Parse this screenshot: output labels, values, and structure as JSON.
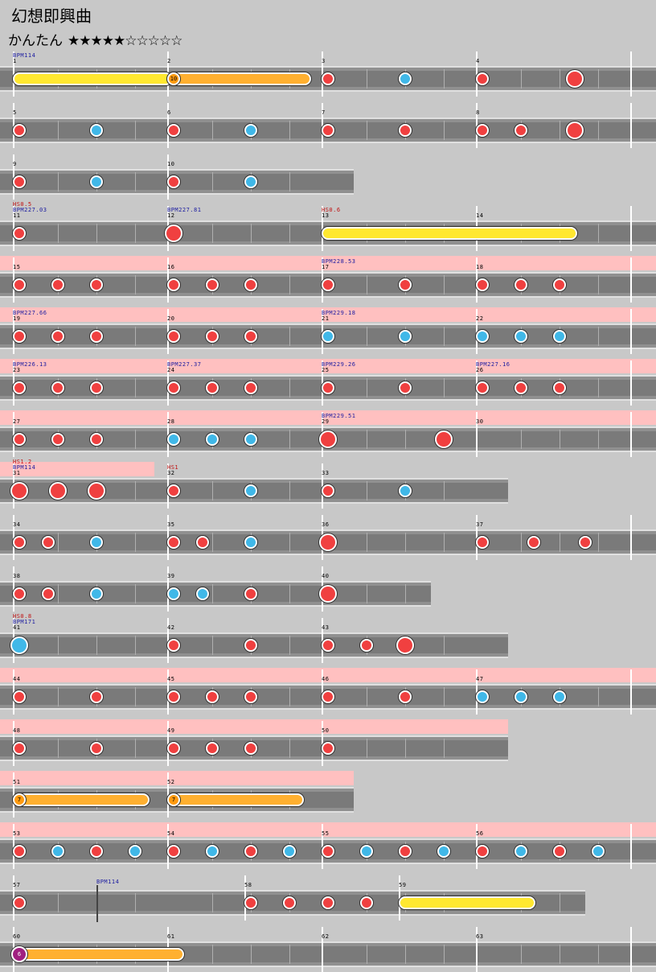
{
  "song_title": "幻想即興曲",
  "difficulty": {
    "label": "かんたん",
    "stars": "★★★★★☆☆☆☆☆"
  },
  "colors": {
    "don": "#f04040",
    "ka": "#40b8e8",
    "drumroll": "#ffe830",
    "balloon": "#ffb030",
    "gogo": "#ffc0c0"
  },
  "rows": [
    {
      "row": 1,
      "measures": [
        {
          "num": "1",
          "bpm": "BPM114"
        },
        {
          "num": "2"
        },
        {
          "num": "3"
        },
        {
          "num": "4"
        }
      ],
      "notes": [
        {
          "type": "drumroll",
          "from": 0,
          "to": 3.8
        },
        {
          "type": "balloon",
          "from": 4,
          "to": 7.4,
          "count": "10"
        },
        {
          "type": "don",
          "at": 8
        },
        {
          "type": "ka",
          "at": 10
        },
        {
          "type": "don",
          "at": 12
        },
        {
          "type": "don_big",
          "at": 14.4
        }
      ]
    },
    {
      "row": 2,
      "measures": [
        {
          "num": "5"
        },
        {
          "num": "6"
        },
        {
          "num": "7"
        },
        {
          "num": "8"
        }
      ],
      "notes": [
        {
          "type": "don",
          "at": 0
        },
        {
          "type": "ka",
          "at": 2
        },
        {
          "type": "don",
          "at": 4
        },
        {
          "type": "ka",
          "at": 6
        },
        {
          "type": "don",
          "at": 8
        },
        {
          "type": "don",
          "at": 10
        },
        {
          "type": "don",
          "at": 12
        },
        {
          "type": "don",
          "at": 13
        },
        {
          "type": "don_big",
          "at": 14.4
        }
      ]
    },
    {
      "row": 3,
      "width_measures": 2.25,
      "measures": [
        {
          "num": "9"
        },
        {
          "num": "10"
        }
      ],
      "notes": [
        {
          "type": "don",
          "at": 0
        },
        {
          "type": "ka",
          "at": 2
        },
        {
          "type": "don",
          "at": 4
        },
        {
          "type": "ka",
          "at": 6
        }
      ]
    },
    {
      "row": 4,
      "measures": [
        {
          "num": "11",
          "bpm": "BPM227.03",
          "hs": "HS0.5"
        },
        {
          "num": "12",
          "bpm": "BPM227.81"
        },
        {
          "num": "13",
          "hs": "HS0.6"
        },
        {
          "num": "14"
        }
      ],
      "notes": [
        {
          "type": "don",
          "at": 0
        },
        {
          "type": "don_big",
          "at": 4
        },
        {
          "type": "drumroll",
          "from": 8,
          "to": 14.3
        }
      ]
    },
    {
      "row": 5,
      "gogo": true,
      "measures": [
        {
          "num": "15"
        },
        {
          "num": "16"
        },
        {
          "num": "17",
          "bpm": "BPM228.53"
        },
        {
          "num": "18"
        }
      ],
      "notes": [
        {
          "type": "don",
          "at": 0
        },
        {
          "type": "don",
          "at": 1
        },
        {
          "type": "don",
          "at": 2
        },
        {
          "type": "don",
          "at": 4
        },
        {
          "type": "don",
          "at": 5
        },
        {
          "type": "don",
          "at": 6
        },
        {
          "type": "don",
          "at": 8
        },
        {
          "type": "don",
          "at": 10
        },
        {
          "type": "don",
          "at": 12
        },
        {
          "type": "don",
          "at": 13
        },
        {
          "type": "don",
          "at": 14
        }
      ]
    },
    {
      "row": 6,
      "gogo": true,
      "measures": [
        {
          "num": "19",
          "bpm": "BPM227.66"
        },
        {
          "num": "20"
        },
        {
          "num": "21",
          "bpm": "BPM229.18"
        },
        {
          "num": "22"
        }
      ],
      "notes": [
        {
          "type": "don",
          "at": 0
        },
        {
          "type": "don",
          "at": 1
        },
        {
          "type": "don",
          "at": 2
        },
        {
          "type": "don",
          "at": 4
        },
        {
          "type": "don",
          "at": 5
        },
        {
          "type": "don",
          "at": 6
        },
        {
          "type": "ka",
          "at": 8
        },
        {
          "type": "ka",
          "at": 10
        },
        {
          "type": "ka",
          "at": 12
        },
        {
          "type": "ka",
          "at": 13
        },
        {
          "type": "ka",
          "at": 14
        }
      ]
    },
    {
      "row": 7,
      "gogo": true,
      "measures": [
        {
          "num": "23",
          "bpm": "BPM226.13"
        },
        {
          "num": "24",
          "bpm": "BPM227.37"
        },
        {
          "num": "25",
          "bpm": "BPM229.26"
        },
        {
          "num": "26",
          "bpm": "BPM227.16"
        }
      ],
      "notes": [
        {
          "type": "don",
          "at": 0
        },
        {
          "type": "don",
          "at": 1
        },
        {
          "type": "don",
          "at": 2
        },
        {
          "type": "don",
          "at": 4
        },
        {
          "type": "don",
          "at": 5
        },
        {
          "type": "don",
          "at": 6
        },
        {
          "type": "don",
          "at": 8
        },
        {
          "type": "don",
          "at": 10
        },
        {
          "type": "don",
          "at": 12
        },
        {
          "type": "don",
          "at": 13
        },
        {
          "type": "don",
          "at": 14
        }
      ]
    },
    {
      "row": 8,
      "gogo": true,
      "measures": [
        {
          "num": "27"
        },
        {
          "num": "28"
        },
        {
          "num": "29",
          "bpm": "BPM229.51"
        },
        {
          "num": "30"
        }
      ],
      "notes": [
        {
          "type": "don",
          "at": 0
        },
        {
          "type": "don",
          "at": 1
        },
        {
          "type": "don",
          "at": 2
        },
        {
          "type": "ka",
          "at": 4
        },
        {
          "type": "ka",
          "at": 5
        },
        {
          "type": "ka",
          "at": 6
        },
        {
          "type": "don_big",
          "at": 8
        },
        {
          "type": "don_big",
          "at": 11
        }
      ]
    },
    {
      "row": 9,
      "width_measures": 3.25,
      "gogo_until": 4,
      "measures": [
        {
          "num": "31",
          "bpm": "BPM114",
          "hs": "HS1.2"
        },
        {
          "num": "32",
          "hs": "HS1"
        },
        {
          "num": "33"
        }
      ],
      "notes": [
        {
          "type": "don_big",
          "at": 0
        },
        {
          "type": "don_big",
          "at": 1
        },
        {
          "type": "don_big",
          "at": 2
        },
        {
          "type": "don",
          "at": 4
        },
        {
          "type": "ka",
          "at": 6
        },
        {
          "type": "don",
          "at": 8
        },
        {
          "type": "ka",
          "at": 10
        }
      ]
    },
    {
      "row": 10,
      "measures": [
        {
          "num": "34"
        },
        {
          "num": "35"
        },
        {
          "num": "36"
        },
        {
          "num": "37"
        }
      ],
      "notes": [
        {
          "type": "don",
          "at": 0
        },
        {
          "type": "don",
          "at": 0.75
        },
        {
          "type": "ka",
          "at": 2
        },
        {
          "type": "don",
          "at": 4
        },
        {
          "type": "don",
          "at": 4.75
        },
        {
          "type": "ka",
          "at": 6
        },
        {
          "type": "don_big",
          "at": 8
        },
        {
          "type": "don",
          "at": 12
        },
        {
          "type": "don",
          "at": 13.33
        },
        {
          "type": "don",
          "at": 14.67
        }
      ]
    },
    {
      "row": 11,
      "width_measures": 2.75,
      "measures": [
        {
          "num": "38"
        },
        {
          "num": "39"
        },
        {
          "num": "40"
        }
      ],
      "notes": [
        {
          "type": "don",
          "at": 0
        },
        {
          "type": "don",
          "at": 0.75
        },
        {
          "type": "ka",
          "at": 2
        },
        {
          "type": "ka",
          "at": 4
        },
        {
          "type": "ka",
          "at": 4.75
        },
        {
          "type": "don",
          "at": 6
        },
        {
          "type": "don_big",
          "at": 8
        }
      ]
    },
    {
      "row": 12,
      "width_measures": 3.25,
      "measures": [
        {
          "num": "41",
          "bpm": "BPM171",
          "hs": "HS0.8"
        },
        {
          "num": "42"
        },
        {
          "num": "43"
        }
      ],
      "notes": [
        {
          "type": "ka_big",
          "at": 0
        },
        {
          "type": "don",
          "at": 4
        },
        {
          "type": "don",
          "at": 6
        },
        {
          "type": "don",
          "at": 8
        },
        {
          "type": "don",
          "at": 9
        },
        {
          "type": "don_big",
          "at": 10
        }
      ]
    },
    {
      "row": 13,
      "gogo": true,
      "measures": [
        {
          "num": "44"
        },
        {
          "num": "45"
        },
        {
          "num": "46"
        },
        {
          "num": "47"
        }
      ],
      "notes": [
        {
          "type": "don",
          "at": 0
        },
        {
          "type": "don",
          "at": 2
        },
        {
          "type": "don",
          "at": 4
        },
        {
          "type": "don",
          "at": 5
        },
        {
          "type": "don",
          "at": 6
        },
        {
          "type": "don",
          "at": 8
        },
        {
          "type": "don",
          "at": 10
        },
        {
          "type": "ka",
          "at": 12
        },
        {
          "type": "ka",
          "at": 13
        },
        {
          "type": "ka",
          "at": 14
        }
      ]
    },
    {
      "row": 14,
      "gogo": true,
      "width_measures": 3.25,
      "measures": [
        {
          "num": "48"
        },
        {
          "num": "49"
        },
        {
          "num": "50"
        }
      ],
      "notes": [
        {
          "type": "don",
          "at": 0
        },
        {
          "type": "don",
          "at": 2
        },
        {
          "type": "don",
          "at": 4
        },
        {
          "type": "don",
          "at": 5
        },
        {
          "type": "don",
          "at": 6
        },
        {
          "type": "don",
          "at": 8
        }
      ]
    },
    {
      "row": 15,
      "gogo": true,
      "width_measures": 2.25,
      "measures": [
        {
          "num": "51"
        },
        {
          "num": "52"
        }
      ],
      "notes": [
        {
          "type": "balloon",
          "from": 0,
          "to": 3.2,
          "count": "7"
        },
        {
          "type": "balloon",
          "from": 4,
          "to": 7.2,
          "count": "7"
        }
      ]
    },
    {
      "row": 16,
      "gogo": true,
      "measures": [
        {
          "num": "53"
        },
        {
          "num": "54"
        },
        {
          "num": "55"
        },
        {
          "num": "56"
        }
      ],
      "notes": [
        {
          "type": "don",
          "at": 0
        },
        {
          "type": "ka",
          "at": 1
        },
        {
          "type": "don",
          "at": 2
        },
        {
          "type": "ka",
          "at": 3
        },
        {
          "type": "don",
          "at": 4
        },
        {
          "type": "ka",
          "at": 5
        },
        {
          "type": "don",
          "at": 6
        },
        {
          "type": "ka",
          "at": 7
        },
        {
          "type": "don",
          "at": 8
        },
        {
          "type": "ka",
          "at": 9
        },
        {
          "type": "don",
          "at": 10
        },
        {
          "type": "ka",
          "at": 11
        },
        {
          "type": "don",
          "at": 12
        },
        {
          "type": "ka",
          "at": 13
        },
        {
          "type": "don",
          "at": 14
        },
        {
          "type": "ka",
          "at": 15
        }
      ]
    },
    {
      "row": 17,
      "width_measures": 3.75,
      "measures": [
        {
          "num": "57"
        },
        {
          "num": "58"
        },
        {
          "num": "59"
        }
      ],
      "bpm_change": {
        "at": 2,
        "label": "BPM114"
      },
      "measure_at": [
        0,
        6,
        10
      ],
      "notes": [
        {
          "type": "don",
          "at": 0
        },
        {
          "type": "don",
          "at": 6
        },
        {
          "type": "don",
          "at": 7
        },
        {
          "type": "don",
          "at": 8
        },
        {
          "type": "don",
          "at": 9
        },
        {
          "type": "drumroll",
          "from": 10,
          "to": 13.2
        }
      ]
    },
    {
      "row": 18,
      "measures": [
        {
          "num": "60"
        },
        {
          "num": "61"
        },
        {
          "num": "62"
        },
        {
          "num": "63"
        }
      ],
      "notes": [
        {
          "type": "kusudama",
          "from": 0,
          "to": 4.1,
          "count": "6"
        }
      ]
    }
  ]
}
